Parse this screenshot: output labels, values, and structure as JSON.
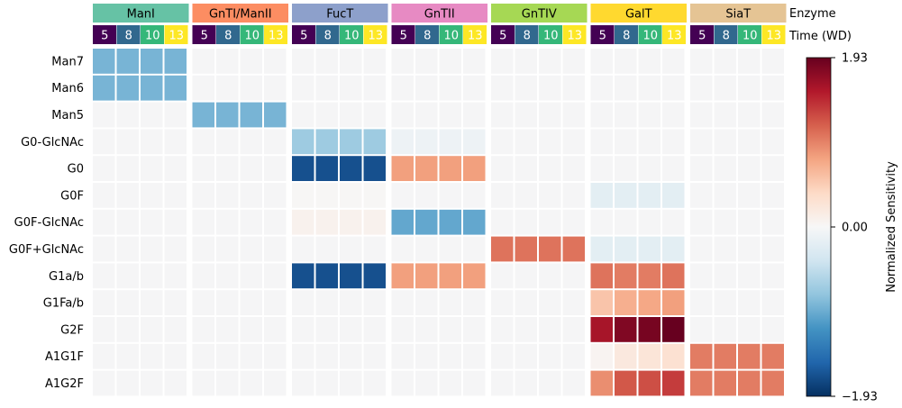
{
  "chart_data": {
    "type": "heatmap",
    "enzymes": [
      {
        "name": "ManI",
        "color": "#66c2a5"
      },
      {
        "name": "GnTI/ManII",
        "color": "#fc8d62"
      },
      {
        "name": "FucT",
        "color": "#8da0cb"
      },
      {
        "name": "GnTII",
        "color": "#e78ac3"
      },
      {
        "name": "GnTIV",
        "color": "#a6d854"
      },
      {
        "name": "GalT",
        "color": "#ffd92f"
      },
      {
        "name": "SiaT",
        "color": "#e5c494"
      }
    ],
    "times": [
      "5",
      "8",
      "10",
      "13"
    ],
    "time_colors": [
      "#440154",
      "#31688e",
      "#35b779",
      "#fde725"
    ],
    "time_text_colors": [
      "#ffffff",
      "#ffffff",
      "#ffffff",
      "#ffffff"
    ],
    "header_enzyme_label": "Enzyme",
    "header_time_label": "Time (WD)",
    "rows": [
      "Man7",
      "Man6",
      "Man5",
      "G0-GlcNAc",
      "G0",
      "G0F",
      "G0F-GlcNAc",
      "G0F+GlcNAc",
      "G1a/b",
      "G1Fa/b",
      "G2F",
      "A1G1F",
      "A1G2F"
    ],
    "values": [
      [
        -0.9,
        -0.9,
        -0.9,
        -0.9,
        0,
        0,
        0,
        0,
        0,
        0,
        0,
        0,
        0,
        0,
        0,
        0,
        0,
        0,
        0,
        0,
        0,
        0,
        0,
        0,
        0,
        0,
        0,
        0
      ],
      [
        -0.9,
        -0.9,
        -0.9,
        -0.9,
        0,
        0,
        0,
        0,
        0,
        0,
        0,
        0,
        0,
        0,
        0,
        0,
        0,
        0,
        0,
        0,
        0,
        0,
        0,
        0,
        0,
        0,
        0,
        0
      ],
      [
        0,
        0,
        0,
        0,
        -0.9,
        -0.9,
        -0.9,
        -0.9,
        0,
        0,
        0,
        0,
        0,
        0,
        0,
        0,
        0,
        0,
        0,
        0,
        0,
        0,
        0,
        0,
        0,
        0,
        0,
        0
      ],
      [
        0,
        0,
        0,
        0,
        0,
        0,
        0,
        0,
        -0.7,
        -0.7,
        -0.7,
        -0.7,
        -0.1,
        -0.1,
        -0.1,
        -0.1,
        0,
        0,
        0,
        0,
        0,
        0,
        0,
        0,
        0,
        0,
        0,
        0
      ],
      [
        0,
        0,
        0,
        0,
        0,
        0,
        0,
        0,
        -1.7,
        -1.7,
        -1.7,
        -1.7,
        0.8,
        0.8,
        0.8,
        0.8,
        0,
        0,
        0,
        0,
        0,
        0,
        0,
        0,
        0,
        0,
        0,
        0
      ],
      [
        0,
        0,
        0,
        0,
        0,
        0,
        0,
        0,
        0.02,
        0.02,
        0.02,
        0.02,
        0,
        0,
        0,
        0,
        0,
        0,
        0,
        0,
        -0.2,
        -0.2,
        -0.2,
        -0.2,
        0,
        0,
        0,
        0
      ],
      [
        0,
        0,
        0,
        0,
        0,
        0,
        0,
        0,
        0.08,
        0.08,
        0.08,
        0.08,
        -1.0,
        -1.0,
        -1.0,
        -1.0,
        0,
        0,
        0,
        0,
        0,
        0,
        0,
        0,
        0,
        0,
        0,
        0
      ],
      [
        0,
        0,
        0,
        0,
        0,
        0,
        0,
        0,
        0,
        0,
        0,
        0,
        0,
        0,
        0,
        0,
        1.05,
        1.05,
        1.05,
        1.05,
        -0.2,
        -0.2,
        -0.2,
        -0.2,
        0,
        0,
        0,
        0
      ],
      [
        0,
        0,
        0,
        0,
        0,
        0,
        0,
        0,
        -1.7,
        -1.7,
        -1.7,
        -1.7,
        0.8,
        0.8,
        0.8,
        0.8,
        0,
        0,
        0,
        0,
        1.05,
        1.0,
        1.0,
        1.05,
        0,
        0,
        0,
        0
      ],
      [
        0,
        0,
        0,
        0,
        0,
        0,
        0,
        0,
        0,
        0,
        0,
        0,
        0,
        0,
        0,
        0,
        0,
        0,
        0,
        0,
        0.55,
        0.7,
        0.75,
        0.8,
        0,
        0,
        0,
        0
      ],
      [
        0,
        0,
        0,
        0,
        0,
        0,
        0,
        0,
        0,
        0,
        0,
        0,
        0,
        0,
        0,
        0,
        0,
        0,
        0,
        0,
        1.6,
        1.8,
        1.85,
        1.93,
        0,
        0,
        0,
        0
      ],
      [
        0,
        0,
        0,
        0,
        0,
        0,
        0,
        0,
        0,
        0,
        0,
        0,
        0,
        0,
        0,
        0,
        0,
        0,
        0,
        0,
        0.05,
        0.2,
        0.25,
        0.3,
        1.0,
        1.0,
        1.0,
        1.0
      ],
      [
        0,
        0,
        0,
        0,
        0,
        0,
        0,
        0,
        0,
        0,
        0,
        0,
        0,
        0,
        0,
        0,
        0,
        0,
        0,
        0,
        0.9,
        1.2,
        1.25,
        1.35,
        1.0,
        1.0,
        1.0,
        1.0
      ]
    ],
    "vmin": -1.93,
    "vmax": 1.93,
    "colorbar": {
      "label": "Normalized Sensitivity",
      "ticks": [
        "1.93",
        "0.00",
        "−1.93"
      ],
      "tick_values": [
        1.93,
        0,
        -1.93
      ],
      "colormap": "RdBu_r"
    }
  }
}
